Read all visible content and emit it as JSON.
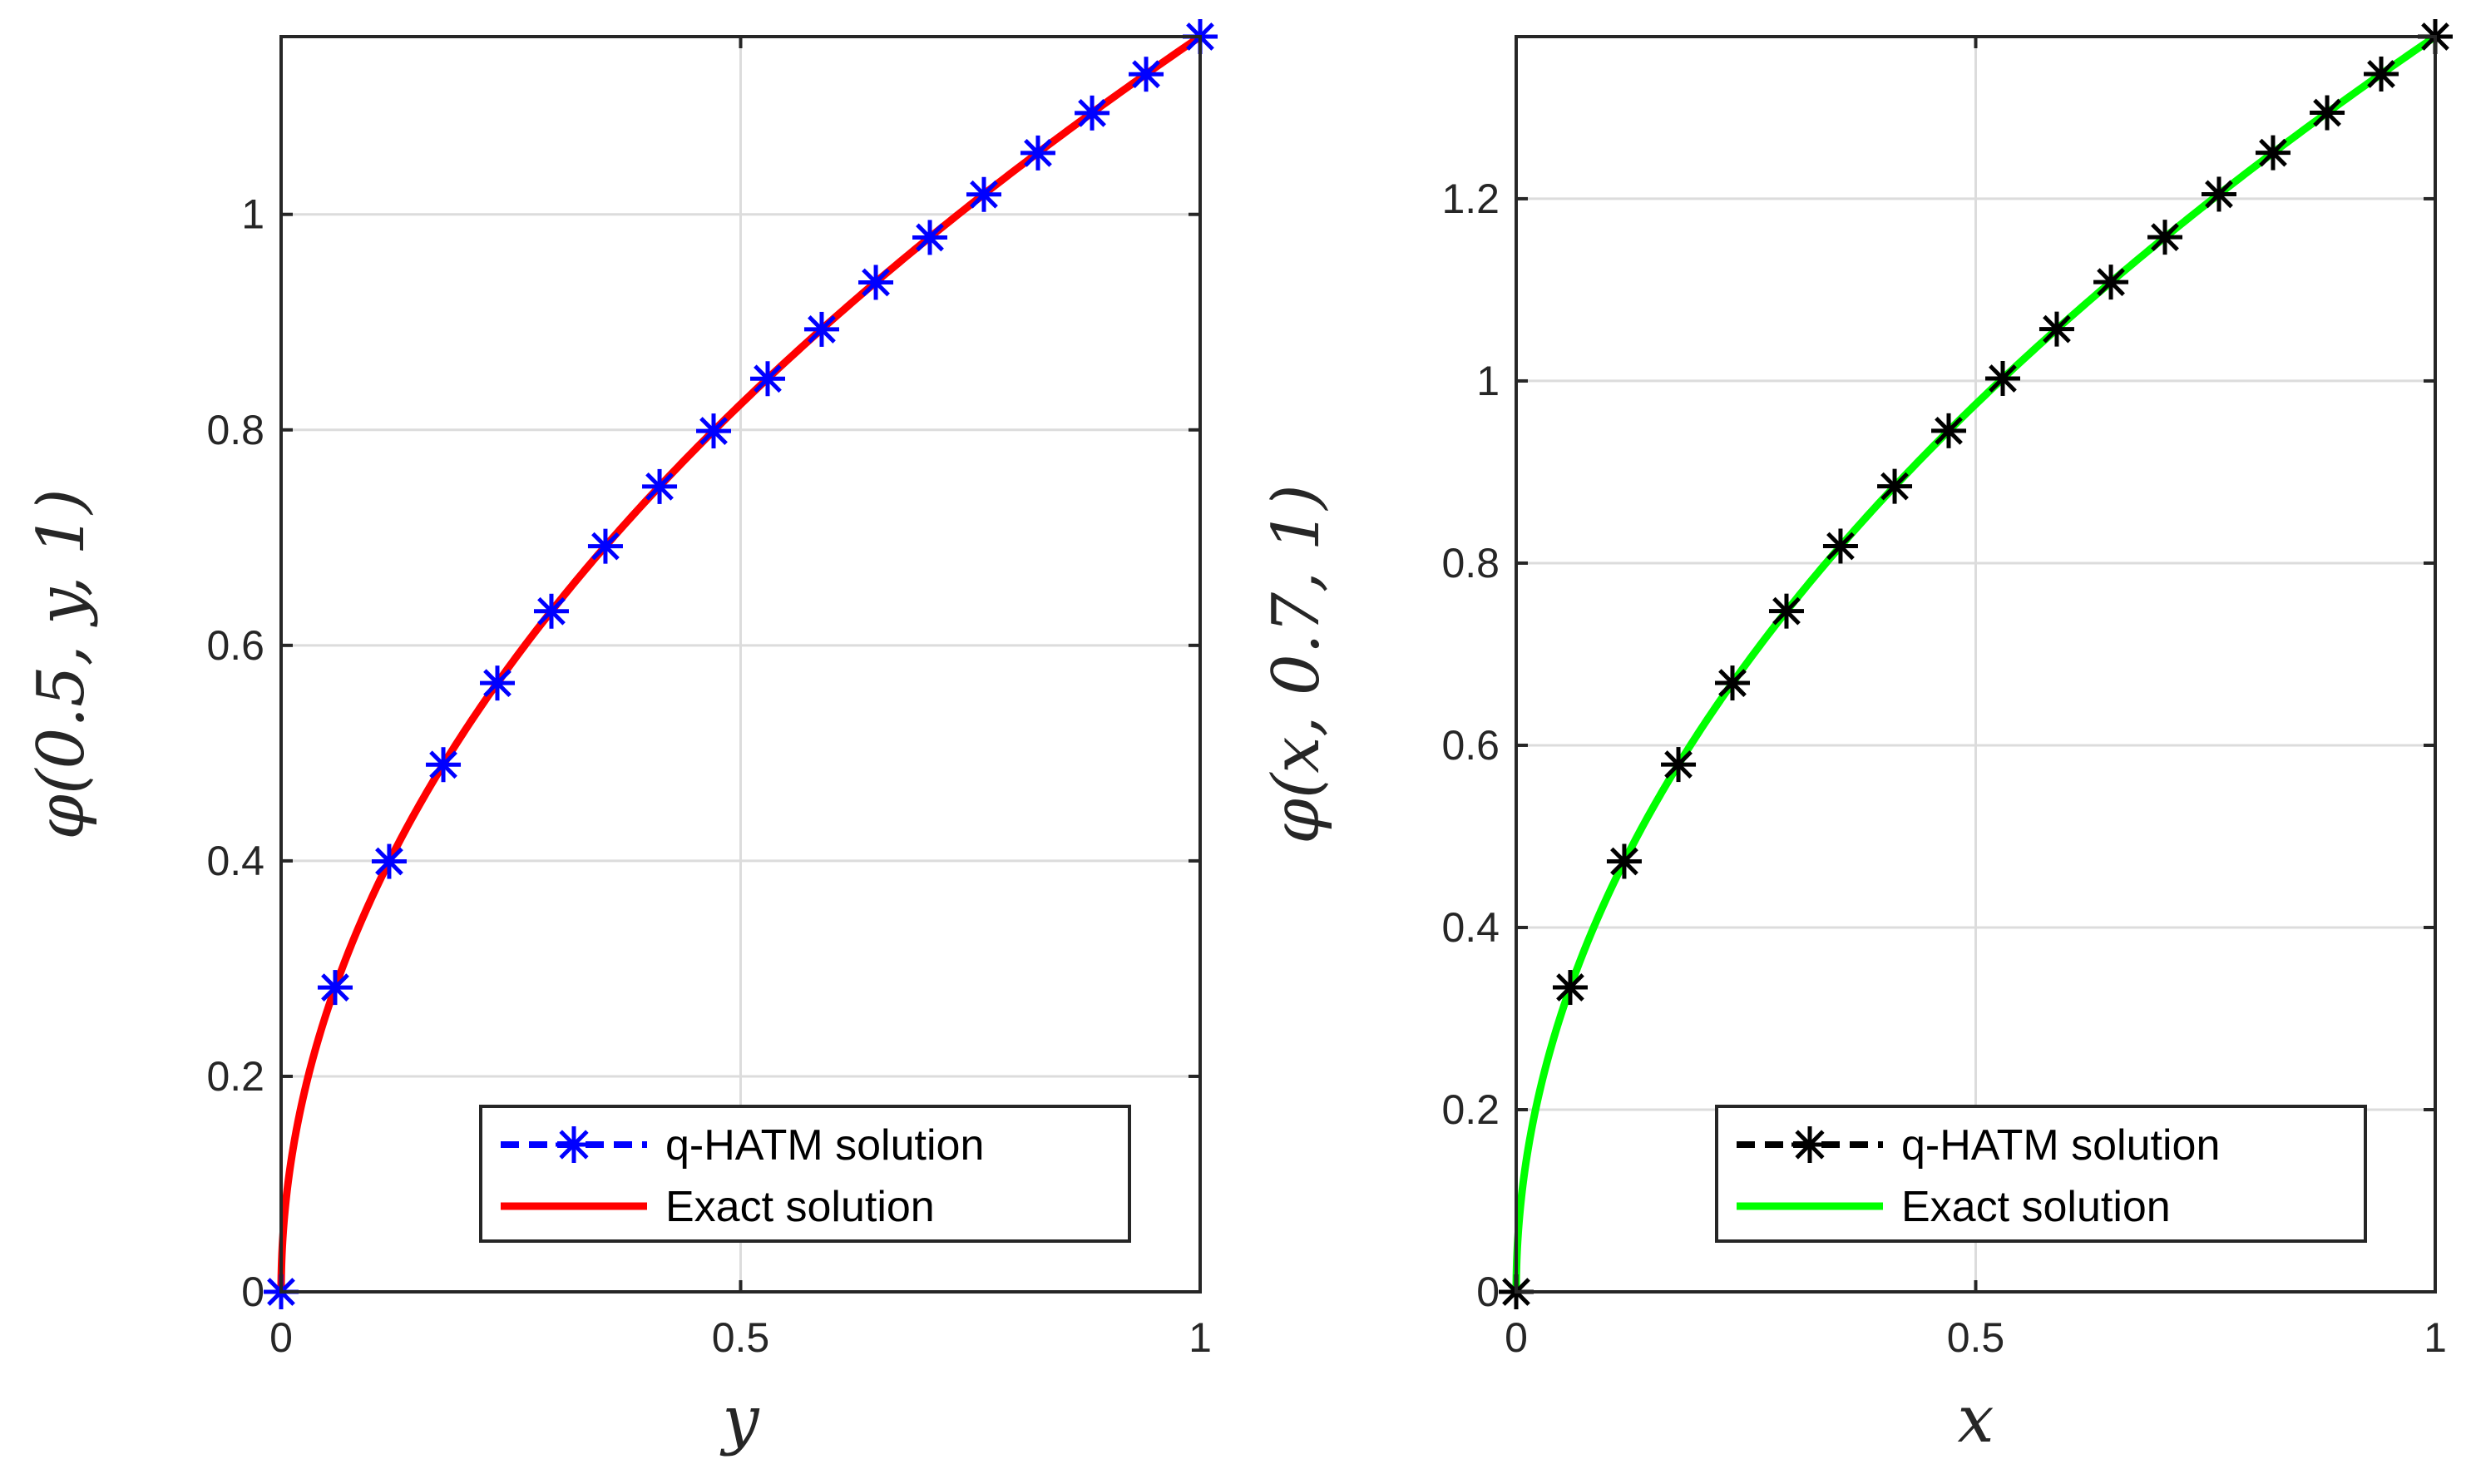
{
  "chart_data": [
    {
      "type": "line",
      "title": "",
      "xlabel": "y",
      "ylabel": "φ(0.5, y, 1)",
      "xlim": [
        0,
        1
      ],
      "ylim": [
        0,
        1.165
      ],
      "xticks": [
        0,
        0.5,
        1
      ],
      "xtick_labels": [
        "0",
        "0.5",
        "1"
      ],
      "yticks": [
        0,
        0.2,
        0.4,
        0.6,
        0.8,
        1
      ],
      "ytick_labels": [
        "0",
        "0.2",
        "0.4",
        "0.6",
        "0.8",
        "1"
      ],
      "grid": true,
      "legend_position": "bottom-right",
      "series": [
        {
          "name": "q-HATM solution",
          "style": "dashed-asterisk-markers",
          "color": "#0000ff",
          "x": [
            0,
            0.0588,
            0.1176,
            0.1765,
            0.2353,
            0.2941,
            0.3529,
            0.4118,
            0.4706,
            0.5294,
            0.5882,
            0.6471,
            0.7059,
            0.7647,
            0.8235,
            0.8824,
            0.9412,
            1.0
          ],
          "y": [
            0,
            0.2825,
            0.3995,
            0.4893,
            0.565,
            0.6317,
            0.692,
            0.7474,
            0.799,
            0.8475,
            0.8933,
            0.9369,
            0.9786,
            1.0185,
            1.057,
            1.0941,
            1.1301,
            1.165
          ]
        },
        {
          "name": "Exact solution",
          "style": "solid",
          "color": "#ff0000",
          "formula": "1.165*sqrt(x)"
        }
      ]
    },
    {
      "type": "line",
      "title": "",
      "xlabel": "x",
      "ylabel": "φ(x, 0.7, 1)",
      "xlim": [
        0,
        1
      ],
      "ylim": [
        0,
        1.378
      ],
      "xticks": [
        0,
        0.5,
        1
      ],
      "xtick_labels": [
        "0",
        "0.5",
        "1"
      ],
      "yticks": [
        0,
        0.2,
        0.4,
        0.6,
        0.8,
        1,
        1.2
      ],
      "ytick_labels": [
        "0",
        "0.2",
        "0.4",
        "0.6",
        "0.8",
        "1",
        "1.2"
      ],
      "grid": true,
      "legend_position": "bottom-right",
      "series": [
        {
          "name": "q-HATM solution",
          "style": "dashed-asterisk-markers",
          "color": "#000000",
          "x": [
            0,
            0.0588,
            0.1176,
            0.1765,
            0.2353,
            0.2941,
            0.3529,
            0.4118,
            0.4706,
            0.5294,
            0.5882,
            0.6471,
            0.7059,
            0.7647,
            0.8235,
            0.8824,
            0.9412,
            1.0
          ],
          "y": [
            0,
            0.3342,
            0.4726,
            0.5789,
            0.6684,
            0.7473,
            0.8187,
            0.8843,
            0.9453,
            1.0027,
            1.0569,
            1.1085,
            1.1578,
            1.205,
            1.2505,
            1.2944,
            1.3369,
            1.378
          ]
        },
        {
          "name": "Exact solution",
          "style": "solid",
          "color": "#00ff00",
          "formula": "1.378*sqrt(x)"
        }
      ]
    }
  ]
}
